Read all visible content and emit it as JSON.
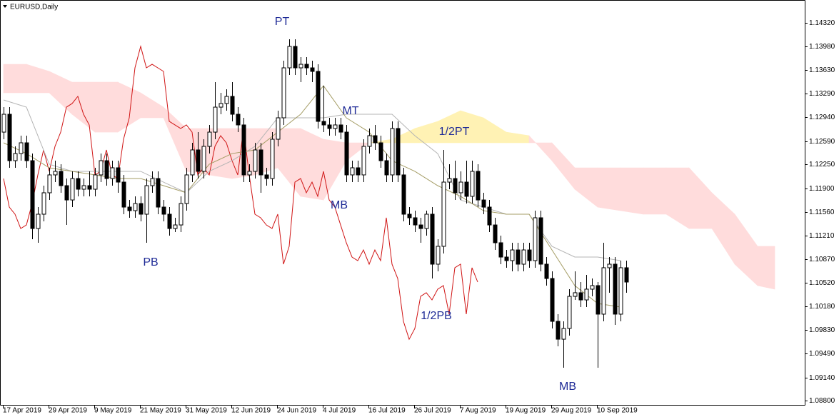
{
  "chart_data": {
    "type": "candlestick",
    "title": "EURUSD,Daily",
    "categories": [
      "17 Apr 2019",
      null,
      null,
      null,
      null,
      null,
      null,
      null,
      "29 Apr 2019",
      null,
      null,
      null,
      null,
      null,
      null,
      null,
      "9 May 2019",
      null,
      null,
      null,
      null,
      null,
      null,
      null,
      "21 May 2019",
      null,
      null,
      null,
      null,
      null,
      null,
      null,
      "31 May 2019",
      null,
      null,
      null,
      null,
      null,
      null,
      null,
      "12 Jun 2019",
      null,
      null,
      null,
      null,
      null,
      null,
      null,
      "24 Jun 2019",
      null,
      null,
      null,
      null,
      null,
      null,
      null,
      "4 Jul 2019",
      null,
      null,
      null,
      null,
      null,
      null,
      null,
      "16 Jul 2019",
      null,
      null,
      null,
      null,
      null,
      null,
      null,
      "26 Jul 2019",
      null,
      null,
      null,
      null,
      null,
      null,
      null,
      "7 Aug 2019",
      null,
      null,
      null,
      null,
      null,
      null,
      null,
      "19 Aug 2019",
      null,
      null,
      null,
      null,
      null,
      null,
      null,
      "29 Aug 2019",
      null,
      null,
      null,
      null,
      null,
      null,
      null,
      "10 Sep 2019",
      null,
      null,
      null,
      null,
      null
    ],
    "open": [
      1.12724,
      1.12985,
      1.12307,
      1.12411,
      1.12568,
      1.12307,
      1.11316,
      1.11525,
      1.11838,
      1.12099,
      1.12151,
      1.11942,
      1.11733,
      1.12046,
      1.1189,
      1.11942,
      1.1189,
      1.12099,
      1.12307,
      1.12046,
      1.12203,
      1.11994,
      1.11629,
      1.11577,
      1.11681,
      1.11525,
      1.11942,
      1.12046,
      1.11629,
      1.11525,
      1.11316,
      1.11368,
      1.11681,
      1.12099,
      1.12464,
      1.12151,
      1.12516,
      1.12724,
      1.13089,
      1.13142,
      1.13246,
      1.12985,
      1.12829,
      1.12099,
      1.12151,
      1.12464,
      1.12099,
      1.12046,
      1.1262,
      1.12933,
      1.13663,
      1.13976,
      1.13663,
      1.13715,
      1.13663,
      1.13611,
      1.12881,
      1.12829,
      1.12777,
      1.12829,
      1.12724,
      1.12099,
      1.12203,
      1.12099,
      1.12516,
      1.12672,
      1.12568,
      1.12307,
      1.12099,
      1.12777,
      1.12099,
      1.11525,
      1.11473,
      1.11368,
      1.11316,
      1.11525,
      1.10795,
      1.11056,
      1.11994,
      1.12046,
      1.11838,
      1.11994,
      1.11786,
      1.12151,
      1.11733,
      1.11629,
      1.11368,
      1.11108,
      1.10899,
      1.10847,
      1.11003,
      1.10795,
      1.11003,
      1.10847,
      1.11473,
      1.10795,
      1.10586,
      1.0996,
      1.09699,
      1.09856,
      1.10325,
      1.10378,
      1.10273,
      1.1043,
      1.10482,
      1.10065,
      1.10743,
      1.10795,
      1.10065,
      1.10743
    ],
    "high": [
      1.13089,
      1.13089,
      1.12516,
      1.12672,
      1.12672,
      1.12411,
      1.11629,
      1.11942,
      1.12203,
      1.12307,
      1.12255,
      1.12046,
      1.12151,
      1.12151,
      1.12046,
      1.12151,
      1.12203,
      1.12411,
      1.12411,
      1.12307,
      1.12307,
      1.12099,
      1.11733,
      1.11786,
      1.11786,
      1.12046,
      1.12151,
      1.12151,
      1.11733,
      1.11629,
      1.11473,
      1.11786,
      1.12203,
      1.12568,
      1.12724,
      1.1262,
      1.12829,
      1.13454,
      1.13298,
      1.1335,
      1.13454,
      1.13089,
      1.12933,
      1.12255,
      1.12568,
      1.12568,
      1.12203,
      1.12724,
      1.13037,
      1.13767,
      1.1408,
      1.1408,
      1.1382,
      1.1382,
      1.13767,
      1.13715,
      1.13402,
      1.12933,
      1.12933,
      1.12933,
      1.12829,
      1.12307,
      1.12307,
      1.1262,
      1.12777,
      1.12829,
      1.12672,
      1.12411,
      1.12881,
      1.12881,
      1.12203,
      1.11629,
      1.11577,
      1.11473,
      1.11577,
      1.11629,
      1.1116,
      1.12464,
      1.12255,
      1.12307,
      1.12151,
      1.12307,
      1.12307,
      1.12255,
      1.11838,
      1.11733,
      1.11473,
      1.11212,
      1.11003,
      1.11108,
      1.11108,
      1.11108,
      1.11108,
      1.11577,
      1.11577,
      1.10899,
      1.1069,
      1.10065,
      1.0996,
      1.1043,
      1.1069,
      1.10534,
      1.10638,
      1.10586,
      1.10534,
      1.11108,
      1.10899,
      1.10899,
      1.10847,
      1.10847
    ],
    "low": [
      1.1262,
      1.12203,
      1.12203,
      1.12307,
      1.12203,
      1.1116,
      1.11108,
      1.11421,
      1.11733,
      1.11994,
      1.11838,
      1.11368,
      1.11629,
      1.11786,
      1.11786,
      1.11786,
      1.11786,
      1.11994,
      1.11942,
      1.11942,
      1.11838,
      1.11525,
      1.11473,
      1.11473,
      1.11421,
      1.11108,
      1.11838,
      1.11525,
      1.11421,
      1.11212,
      1.11264,
      1.11264,
      1.11577,
      1.11994,
      1.12046,
      1.12046,
      1.12411,
      1.1262,
      1.12985,
      1.13037,
      1.12881,
      1.12724,
      1.11994,
      1.11994,
      1.12046,
      1.11838,
      1.11942,
      1.11942,
      1.12516,
      1.12829,
      1.13559,
      1.13559,
      1.13454,
      1.13559,
      1.13454,
      1.12777,
      1.12724,
      1.12672,
      1.12672,
      1.1262,
      1.11994,
      1.11994,
      1.11994,
      1.11994,
      1.12411,
      1.12464,
      1.12203,
      1.11994,
      1.11994,
      1.11994,
      1.11421,
      1.11368,
      1.11264,
      1.11108,
      1.11212,
      1.10586,
      1.1069,
      1.10951,
      1.1189,
      1.11733,
      1.11733,
      1.11681,
      1.11681,
      1.11629,
      1.11525,
      1.11264,
      1.11003,
      1.10795,
      1.10743,
      1.1069,
      1.1069,
      1.1069,
      1.10743,
      1.10743,
      1.1069,
      1.10482,
      1.09856,
      1.09595,
      1.09282,
      1.09752,
      1.10273,
      1.10169,
      1.10169,
      1.10325,
      1.09282,
      1.0996,
      1.10378,
      1.09908,
      1.0996,
      1.10378
    ],
    "close": [
      1.12985,
      1.12307,
      1.12411,
      1.12568,
      1.12307,
      1.11316,
      1.11525,
      1.11838,
      1.12099,
      1.12151,
      1.11942,
      1.11733,
      1.12046,
      1.1189,
      1.11942,
      1.1189,
      1.12099,
      1.12307,
      1.12046,
      1.12203,
      1.11994,
      1.11629,
      1.11577,
      1.11681,
      1.11525,
      1.11942,
      1.12046,
      1.11629,
      1.11525,
      1.11316,
      1.11368,
      1.11681,
      1.12099,
      1.12464,
      1.12151,
      1.12516,
      1.12724,
      1.13089,
      1.13142,
      1.13246,
      1.12985,
      1.12829,
      1.12099,
      1.12151,
      1.12464,
      1.12099,
      1.12046,
      1.1262,
      1.12933,
      1.13663,
      1.13976,
      1.13663,
      1.13715,
      1.13663,
      1.13611,
      1.12881,
      1.12829,
      1.12777,
      1.12829,
      1.12724,
      1.12099,
      1.12203,
      1.12099,
      1.12516,
      1.12672,
      1.12568,
      1.12307,
      1.12099,
      1.12777,
      1.12099,
      1.11525,
      1.11473,
      1.11368,
      1.11316,
      1.11525,
      1.10795,
      1.11056,
      1.11994,
      1.12046,
      1.11838,
      1.11994,
      1.11786,
      1.12151,
      1.11733,
      1.11629,
      1.11368,
      1.11108,
      1.10899,
      1.10847,
      1.11003,
      1.10795,
      1.11003,
      1.10847,
      1.11473,
      1.10795,
      1.10586,
      1.0996,
      1.09699,
      1.09856,
      1.10325,
      1.10378,
      1.10273,
      1.1043,
      1.10482,
      1.10065,
      1.10743,
      1.10795,
      1.10065,
      1.10743,
      1.10534
    ],
    "up_color": "#ffffff",
    "down_color": "#000000",
    "line_series": [
      {
        "color": "#d01414",
        "values": [
          1.12046,
          1.11629,
          1.11525,
          1.11316,
          1.11368,
          1.11681,
          1.12099,
          1.12464,
          1.12151,
          1.12516,
          1.12724,
          1.13089,
          1.13142,
          1.13246,
          1.12985,
          1.12829,
          1.12099,
          1.12151,
          1.12464,
          1.12099,
          1.12046,
          1.1262,
          1.12933,
          1.13663,
          1.13976,
          1.13663,
          1.13715,
          1.13663,
          1.13611,
          1.12881,
          1.12829,
          1.12777,
          1.12829,
          1.12724,
          1.12099,
          1.12203,
          1.12099,
          1.12516,
          1.12672,
          1.12568,
          1.12307,
          1.12099,
          1.12777,
          1.12099,
          1.11525,
          1.11473,
          1.11368,
          1.11316,
          1.11525,
          1.10795,
          1.11056,
          1.11994,
          1.12046,
          1.11838,
          1.11994,
          1.11786,
          1.12151,
          1.11733,
          1.11629,
          1.11368,
          1.11108,
          1.10899,
          1.10847,
          1.11003,
          1.10795,
          1.11003,
          1.10847,
          1.11473,
          1.10795,
          1.10586,
          1.0996,
          1.09699,
          1.09856,
          1.10325,
          1.10378,
          1.10273,
          1.1043,
          1.10482,
          1.10065,
          1.10743,
          1.10795,
          1.10065,
          1.10743,
          1.10534,
          null,
          null,
          null,
          null,
          null,
          null,
          null,
          null,
          null,
          null,
          null,
          null,
          null,
          null,
          null,
          null,
          null,
          null,
          null,
          null,
          null,
          null,
          null,
          null,
          null,
          null
        ]
      },
      {
        "color": "#b4b4b4",
        "x": [
          0,
          4,
          8,
          12,
          16,
          20,
          24,
          28,
          32,
          36,
          40,
          44,
          48,
          52,
          56,
          60,
          64,
          68,
          72,
          76,
          80,
          84,
          88,
          92,
          96,
          100,
          104,
          108
        ],
        "values": [
          1.13194,
          1.13089,
          1.12255,
          1.12151,
          1.12151,
          1.12151,
          1.12151,
          1.11994,
          1.11838,
          1.12151,
          1.12307,
          1.12516,
          1.12933,
          1.12933,
          1.12933,
          1.12985,
          1.12985,
          1.12985,
          1.12672,
          1.12411,
          1.11733,
          1.11629,
          1.11525,
          1.11525,
          1.11056,
          1.10899,
          1.10899,
          1.10847
        ]
      },
      {
        "color": "#a49c64",
        "x": [
          0,
          4,
          8,
          12,
          16,
          20,
          24,
          28,
          32,
          36,
          40,
          44,
          48,
          52,
          56,
          60,
          64,
          68,
          72,
          76,
          80,
          84,
          88,
          92,
          96,
          100,
          104,
          108
        ],
        "values": [
          1.12568,
          1.12411,
          1.12203,
          1.12151,
          1.12099,
          1.12046,
          1.12046,
          1.11942,
          1.11838,
          1.12255,
          1.12411,
          1.12464,
          1.12724,
          1.12985,
          1.13402,
          1.12933,
          1.12724,
          1.12307,
          1.12151,
          1.11942,
          1.11786,
          1.11577,
          1.11525,
          1.11525,
          1.11003,
          1.10482,
          1.10221,
          1.10169
        ]
      }
    ],
    "cloud": {
      "x": [
        0,
        4,
        8,
        12,
        16,
        20,
        24,
        28,
        32,
        36,
        40,
        44,
        48,
        52,
        56,
        60,
        64,
        68,
        72,
        76,
        80,
        84,
        88,
        92,
        96,
        100,
        104,
        108,
        112,
        116,
        120,
        124,
        128,
        132,
        135
      ],
      "span_a": [
        1.13298,
        1.13298,
        1.13298,
        1.12985,
        1.12724,
        1.12724,
        1.12933,
        1.12933,
        1.12151,
        1.12099,
        1.12046,
        1.12099,
        1.12203,
        1.11786,
        1.11733,
        1.12307,
        1.12568,
        1.1262,
        1.12777,
        1.12881,
        1.13037,
        1.12933,
        1.12724,
        1.12672,
        1.12307,
        1.1189,
        1.11629,
        1.11577,
        1.11525,
        1.11525,
        1.11316,
        1.11316,
        1.10795,
        1.10482,
        1.1043
      ],
      "span_b": [
        1.13715,
        1.13715,
        1.13611,
        1.13454,
        1.13454,
        1.13454,
        1.13298,
        1.13089,
        1.12777,
        1.12777,
        1.12777,
        1.12777,
        1.12777,
        1.12777,
        1.1262,
        1.12568,
        1.12568,
        1.12568,
        1.12568,
        1.12568,
        1.12568,
        1.12568,
        1.12568,
        1.12568,
        1.12568,
        1.12203,
        1.12203,
        1.12203,
        1.12203,
        1.12203,
        1.12203,
        1.11838,
        1.11525,
        1.11056,
        1.11056
      ],
      "up_color": "#fff2b4",
      "down_color": "#ffdcdc"
    },
    "annotations": [
      "PT",
      "MT",
      "1/2PT",
      "MB",
      "PB",
      "1/2PB",
      "MB"
    ],
    "annotation_color": "#1e2a96",
    "ylim": [
      1.0874,
      1.14654
    ],
    "yticks": [
      {
        "value": 1.1432,
        "label": "1.14320"
      },
      {
        "value": 1.1398,
        "label": "1.13980"
      },
      {
        "value": 1.1363,
        "label": "1.13630"
      },
      {
        "value": 1.1329,
        "label": "1.13290"
      },
      {
        "value": 1.1294,
        "label": "1.12940"
      },
      {
        "value": 1.1259,
        "label": "1.12590"
      },
      {
        "value": 1.1225,
        "label": "1.12250"
      },
      {
        "value": 1.119,
        "label": "1.11900"
      },
      {
        "value": 1.1156,
        "label": "1.11560"
      },
      {
        "value": 1.1121,
        "label": "1.11210"
      },
      {
        "value": 1.1087,
        "label": "1.10870"
      },
      {
        "value": 1.1052,
        "label": "1.10520"
      },
      {
        "value": 1.1018,
        "label": "1.10180"
      },
      {
        "value": 1.0983,
        "label": "1.09830"
      },
      {
        "value": 1.0949,
        "label": "1.09490"
      },
      {
        "value": 1.0914,
        "label": "1.09140"
      },
      {
        "value": 1.088,
        "label": "1.08800"
      }
    ],
    "grid": false
  }
}
